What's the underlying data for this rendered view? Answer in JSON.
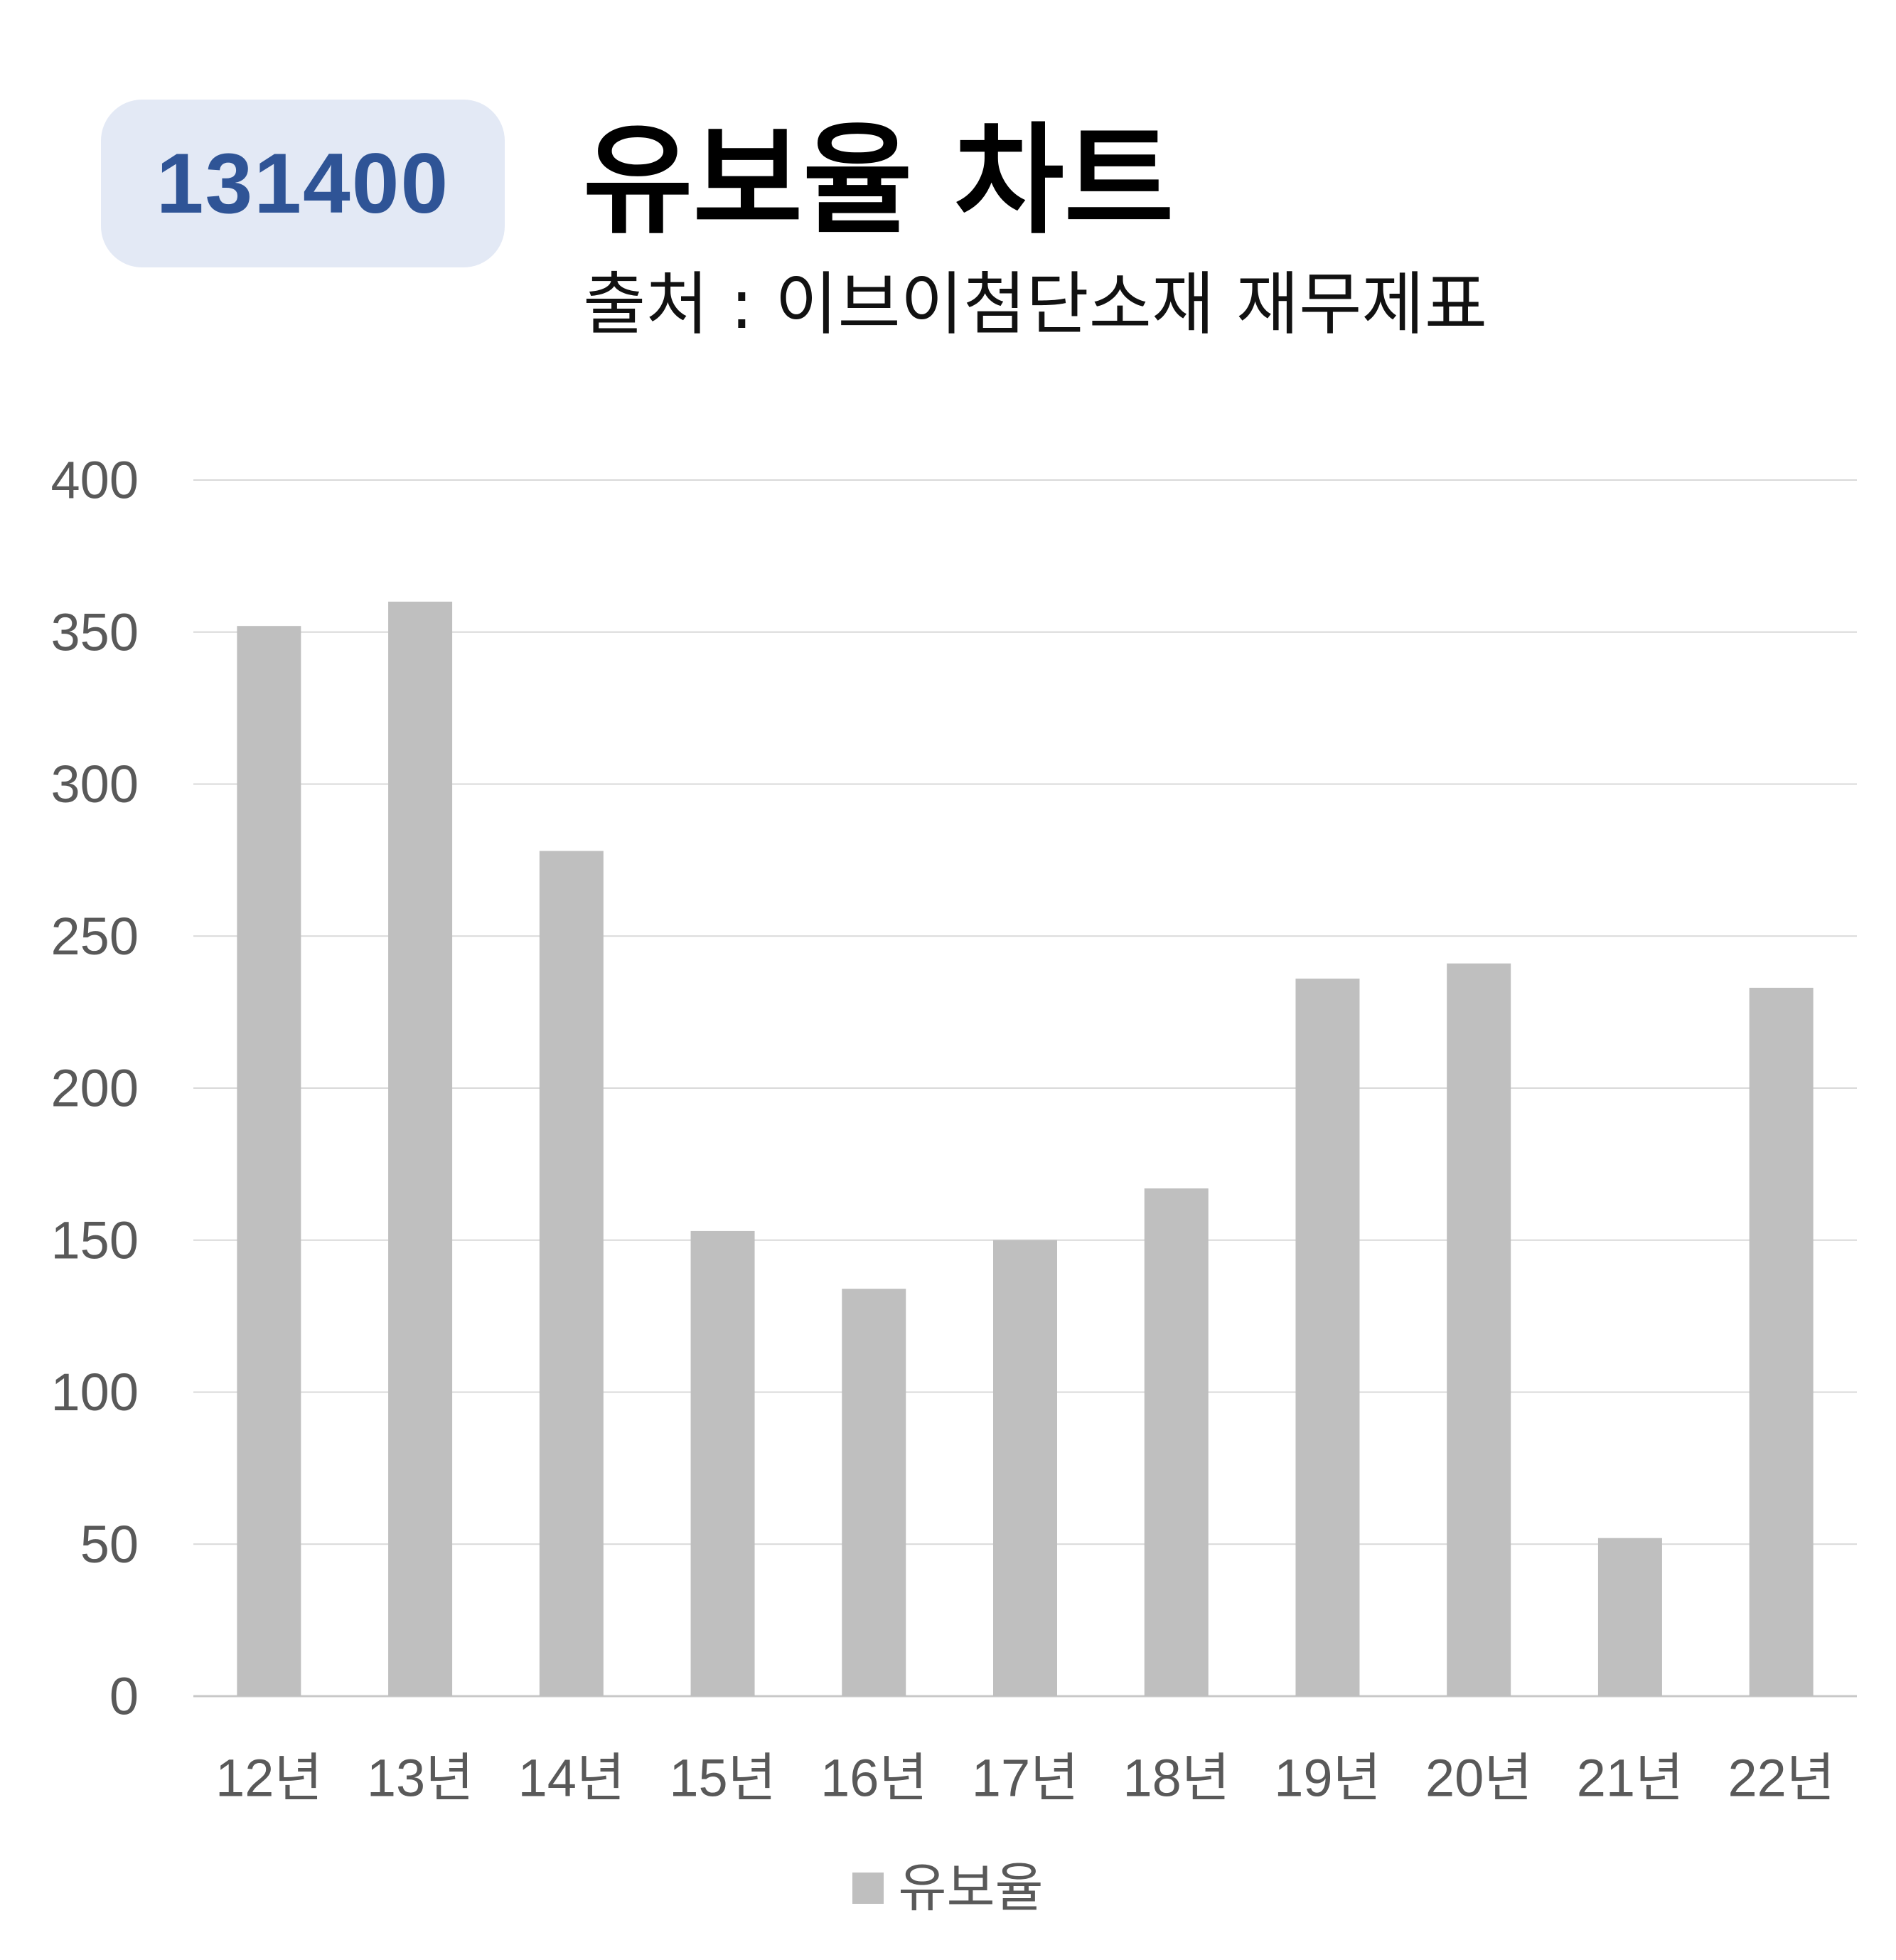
{
  "header": {
    "code": "131400",
    "title": "유보율 차트",
    "subtitle": "출처 : 이브이첨단소재 재무제표"
  },
  "colors": {
    "badge_bg": "#e3e9f5",
    "badge_text": "#2f5496",
    "bar": "#bfbfbf",
    "grid": "#d9d9d9",
    "axis_text": "#595959"
  },
  "chart_data": {
    "type": "bar",
    "categories": [
      "12년",
      "13년",
      "14년",
      "15년",
      "16년",
      "17년",
      "18년",
      "19년",
      "20년",
      "21년",
      "22년"
    ],
    "series": [
      {
        "name": "유보율",
        "values": [
          352,
          360,
          278,
          153,
          134,
          150,
          167,
          236,
          241,
          52,
          233
        ]
      }
    ],
    "ylim": [
      0,
      400
    ],
    "yticks": [
      0,
      50,
      100,
      150,
      200,
      250,
      300,
      350,
      400
    ],
    "grid": true,
    "legend_position": "bottom"
  }
}
